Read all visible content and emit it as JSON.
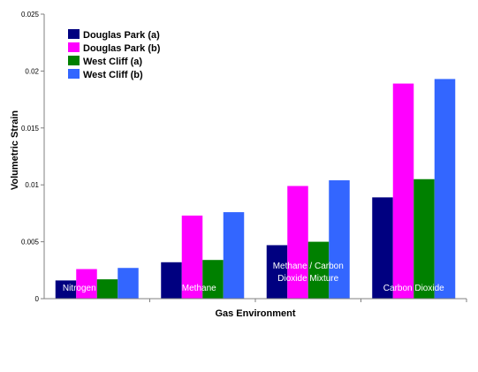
{
  "chart_data": {
    "type": "bar",
    "xlabel": "Gas Environment",
    "ylabel": "Volumetric Strain",
    "ylim": [
      0,
      0.025
    ],
    "yticks": [
      "0",
      "0.005",
      "0.01",
      "0.015",
      "0.02",
      "0.025"
    ],
    "grid": false,
    "legend_position": "top-left",
    "categories": [
      [
        "Nitrogen"
      ],
      [
        "Methane"
      ],
      [
        "Methane / Carbon",
        "Dioxide Mixture"
      ],
      [
        "Carbon Dioxide"
      ]
    ],
    "series": [
      {
        "name": "Douglas Park (a)",
        "color": "#000080",
        "values": [
          0.0016,
          0.0032,
          0.0047,
          0.0089
        ]
      },
      {
        "name": "Douglas Park (b)",
        "color": "#ff00ff",
        "values": [
          0.0026,
          0.0073,
          0.0099,
          0.0189
        ]
      },
      {
        "name": "West Cliff (a)",
        "color": "#008000",
        "values": [
          0.0017,
          0.0034,
          0.005,
          0.0105
        ]
      },
      {
        "name": "West Cliff (b)",
        "color": "#3366ff",
        "values": [
          0.0027,
          0.0076,
          0.0104,
          0.0193
        ]
      }
    ]
  }
}
